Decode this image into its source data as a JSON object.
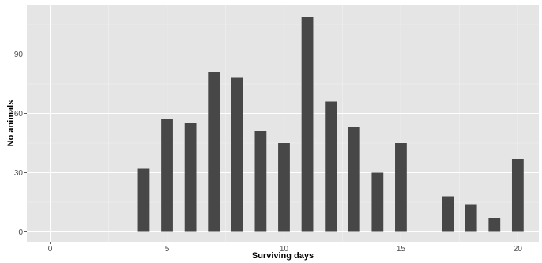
{
  "chart_data": {
    "type": "bar",
    "title": "",
    "xlabel": "Surviving days",
    "ylabel": "No animals",
    "x": [
      4,
      5,
      6,
      7,
      8,
      9,
      10,
      11,
      12,
      13,
      14,
      15,
      17,
      18,
      19,
      20
    ],
    "values": [
      32,
      57,
      55,
      81,
      78,
      51,
      45,
      109,
      66,
      53,
      30,
      45,
      18,
      14,
      7,
      37
    ],
    "xlim": [
      -1,
      20.9
    ],
    "ylim": [
      -5,
      115
    ],
    "x_ticks": [
      0,
      5,
      10,
      15,
      20
    ],
    "x_tick_labels": [
      "0",
      "5",
      "10",
      "15",
      "20"
    ],
    "y_ticks": [
      0,
      30,
      60,
      90
    ],
    "y_tick_labels": [
      "0",
      "30",
      "60",
      "90"
    ],
    "bar_width": 0.5,
    "grid": true,
    "legend": "none",
    "colors": {
      "bar": "#474747",
      "panel_background": "#e5e5e5",
      "grid_major": "#ffffff",
      "grid_minor": "#f2f2f2",
      "tick_label": "#4d4d4d",
      "axis_title": "#000000"
    }
  }
}
